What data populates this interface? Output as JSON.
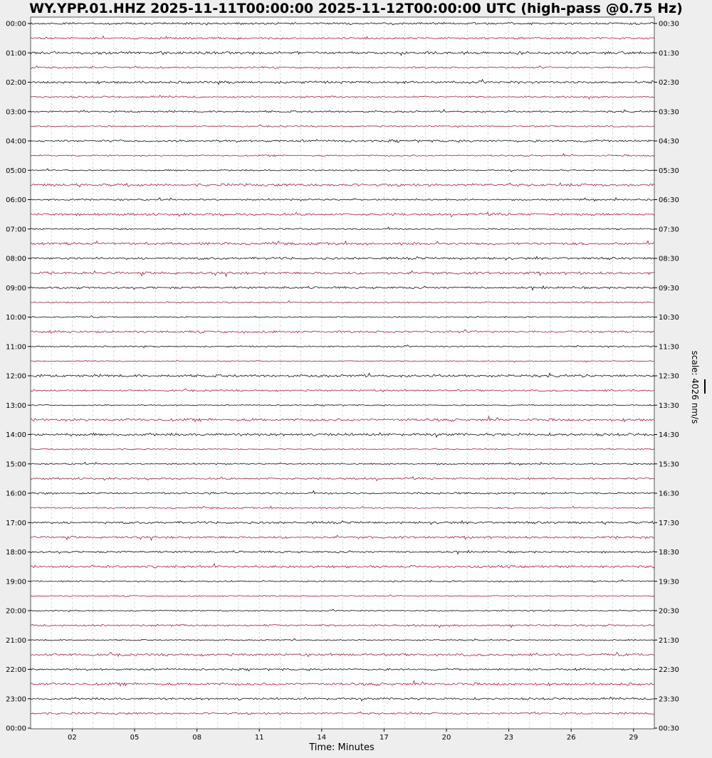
{
  "title": "WY.YPP.01.HHZ 2025-11-11T00:00:00 2025-11-12T00:00:00 UTC (high-pass @0.75 Hz)",
  "xlabel": "Time: Minutes",
  "scale_label": "scale: 4026 nm/s",
  "colors": {
    "trace_even": "#111111",
    "trace_odd": "#a3213f",
    "background": "#eeeeee",
    "plot_bg": "#ffffff",
    "grid": "#cccccc"
  },
  "chart_data": {
    "type": "line",
    "title": "WY.YPP.01.HHZ 2025-11-11T00:00:00 2025-11-12T00:00:00 UTC (high-pass @0.75 Hz)",
    "xlabel": "Time: Minutes",
    "ylabel": "",
    "xlim": [
      0,
      30
    ],
    "x_ticks": [
      "02",
      "05",
      "08",
      "11",
      "14",
      "17",
      "20",
      "23",
      "26",
      "29"
    ],
    "x_tick_values": [
      2,
      5,
      8,
      11,
      14,
      17,
      20,
      23,
      26,
      29
    ],
    "left_tick_labels": [
      "00:00",
      "01:00",
      "02:00",
      "03:00",
      "04:00",
      "05:00",
      "06:00",
      "07:00",
      "08:00",
      "09:00",
      "10:00",
      "11:00",
      "12:00",
      "13:00",
      "14:00",
      "15:00",
      "16:00",
      "17:00",
      "18:00",
      "19:00",
      "20:00",
      "21:00",
      "22:00",
      "23:00",
      "00:00"
    ],
    "right_tick_labels": [
      "00:30",
      "01:30",
      "02:30",
      "03:30",
      "04:30",
      "05:30",
      "06:30",
      "07:30",
      "08:30",
      "09:30",
      "10:30",
      "11:30",
      "12:30",
      "13:30",
      "14:30",
      "15:30",
      "16:30",
      "17:30",
      "18:30",
      "19:30",
      "20:30",
      "21:30",
      "22:30",
      "23:30",
      "00:30"
    ],
    "trace_count": 48,
    "trace_interval_minutes": 30,
    "scale": "4026 nm/s",
    "grid": "vertical dashed"
  }
}
